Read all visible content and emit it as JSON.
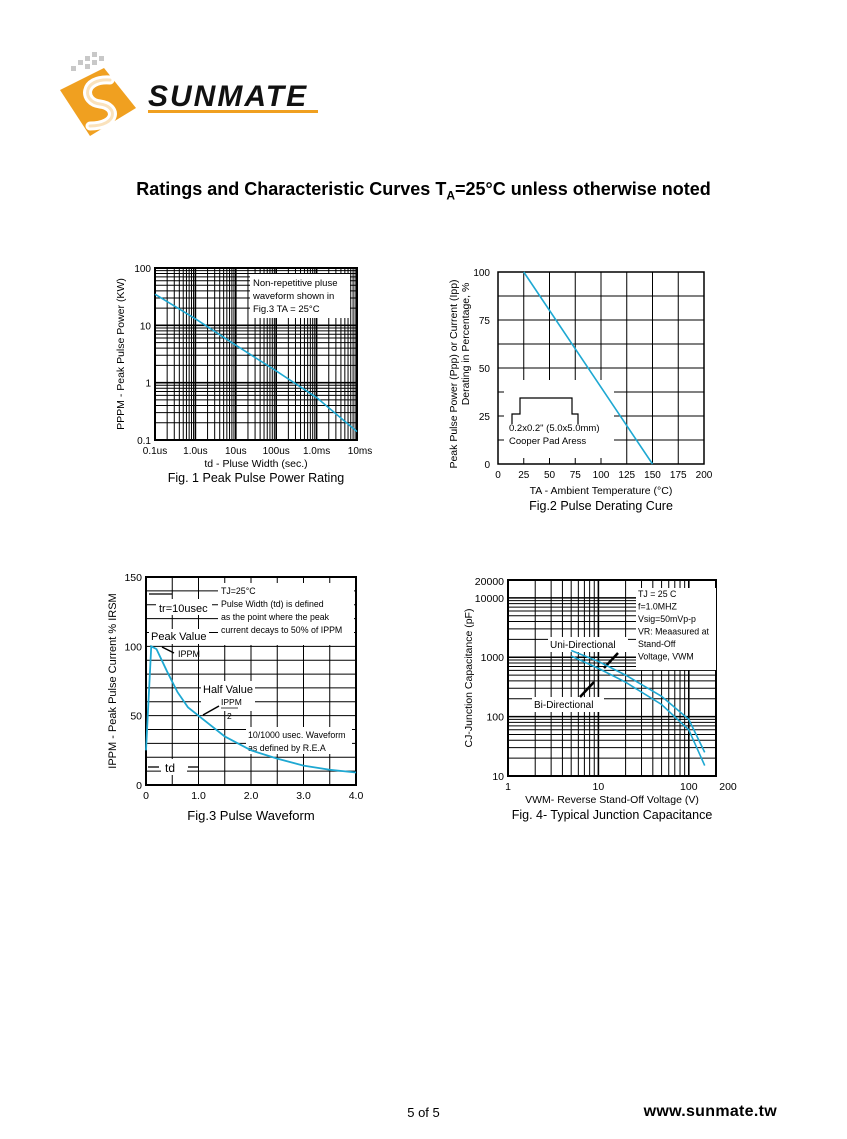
{
  "header": {
    "brand": "SUNMATE",
    "title_main": "Ratings and Characteristic Curves T",
    "title_sub": "A",
    "title_tail": "=25°C unless otherwise noted"
  },
  "footer": {
    "page": "5 of 5",
    "url": "www.sunmate.tw"
  },
  "colors": {
    "curve": "#1ea8d2",
    "grid": "#000000",
    "logo_orange": "#f0a020"
  },
  "chart_data": [
    {
      "type": "line",
      "caption": "Fig. 1 Peak Pulse Power Rating",
      "xlabel": "td - Pluse Width (sec.)",
      "ylabel": "PPPM - Peak Pulse Power (KW)",
      "xscale": "log",
      "yscale": "log",
      "xlim": [
        1e-07,
        0.01
      ],
      "ylim": [
        0.1,
        100
      ],
      "xticks": [
        "0.1us",
        "1.0us",
        "10us",
        "100us",
        "1.0ms",
        "10ms"
      ],
      "yticks": [
        "0.1",
        "1",
        "10",
        "100"
      ],
      "annotation": [
        "Non-repetitive pluse",
        "waveform shown in",
        "Fig.3 TA = 25°C"
      ],
      "series": [
        {
          "x": [
            1e-07,
            1e-06,
            1e-05,
            0.0001,
            0.001,
            0.01
          ],
          "y": [
            35,
            13,
            4.5,
            1.6,
            0.55,
            0.14
          ]
        }
      ]
    },
    {
      "type": "line",
      "caption": "Fig.2 Pulse Derating Cure",
      "xlabel": "TA - Ambient Temperature (°C)",
      "ylabel": "Peak Pulse Power (Ppp) or Current (Ipp) Derating in Percentage, %",
      "xlim": [
        0,
        200
      ],
      "ylim": [
        0,
        100
      ],
      "xticks": [
        "0",
        "25",
        "50",
        "75",
        "100",
        "125",
        "150",
        "175",
        "200"
      ],
      "yticks": [
        "0",
        "25",
        "50",
        "75",
        "100"
      ],
      "annotation": [
        "0.2x0.2\" (5.0x5.0mm)",
        "Cooper Pad Aress"
      ],
      "series": [
        {
          "x": [
            25,
            150
          ],
          "y": [
            100,
            0
          ]
        }
      ]
    },
    {
      "type": "line",
      "caption": "Fig.3 Pulse Waveform",
      "xlabel": "",
      "ylabel": "IPPM - Peak Pulse Current % IRSM",
      "xlim": [
        0,
        4.0
      ],
      "ylim": [
        0,
        150
      ],
      "xticks": [
        "0",
        "1.0",
        "2.0",
        "3.0",
        "4.0"
      ],
      "yticks": [
        "0",
        "50",
        "100",
        "150"
      ],
      "annotation": [
        "TJ=25°C",
        "Pulse Width (td) is defined",
        "as the point where the peak",
        "current decays to 50% of IPPM"
      ],
      "labels": {
        "tr": "tr=10usec",
        "peak": "Peak Value",
        "ippm": "IPPM",
        "half": "Half Value",
        "half_num": "IPPM",
        "half_den": "2",
        "wave1": "10/1000 usec. Waveform",
        "wave2": "as defined by R.E.A",
        "td": "td"
      },
      "series": [
        {
          "x": [
            0,
            0.1,
            0.2,
            0.4,
            0.6,
            0.8,
            1.0,
            1.5,
            2.0,
            2.5,
            3.0,
            3.5,
            4.0
          ],
          "y": [
            25,
            100,
            98,
            82,
            67,
            56,
            50,
            35,
            25,
            19,
            14,
            11,
            9
          ]
        }
      ]
    },
    {
      "type": "line",
      "caption": "Fig. 4- Typical Junction Capacitance",
      "xlabel": "VWM- Reverse Stand-Off Voltage (V)",
      "ylabel": "CJ-Junction Capacitance (pF)",
      "xscale": "log",
      "yscale": "log",
      "xlim": [
        1,
        200
      ],
      "ylim": [
        10,
        20000
      ],
      "xticks": [
        "1",
        "10",
        "100",
        "200"
      ],
      "yticks": [
        "10",
        "100",
        "1000",
        "10000",
        "20000"
      ],
      "annotation": [
        "TJ = 25 C",
        "f=1.0MHZ",
        "Vsig=50mVp-p",
        "VR: Meaasured at",
        "Stand-Off",
        "Voltage, VWM"
      ],
      "labels": {
        "uni": "Uni-Directional",
        "bi": "Bi-Directional"
      },
      "series": [
        {
          "name": "Uni-Directional",
          "x": [
            5,
            10,
            20,
            50,
            100,
            150
          ],
          "y": [
            1300,
            850,
            500,
            220,
            90,
            25
          ]
        },
        {
          "name": "Bi-Directional",
          "x": [
            5,
            10,
            20,
            50,
            100,
            150
          ],
          "y": [
            1050,
            650,
            380,
            160,
            60,
            15
          ]
        }
      ]
    }
  ]
}
